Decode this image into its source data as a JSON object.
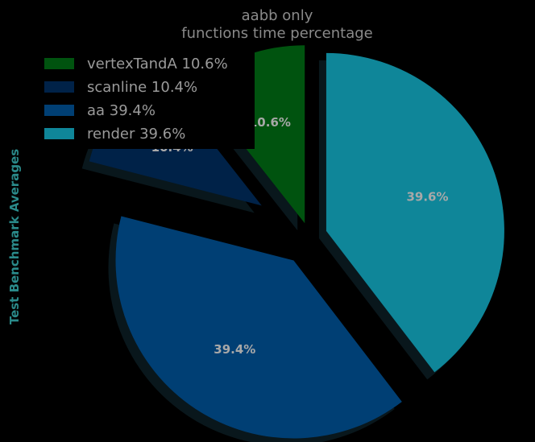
{
  "chart_data": {
    "type": "pie",
    "title": "aabb only\nfunctions time percentage",
    "title_lines": [
      "aabb only",
      "functions time percentage"
    ],
    "ylabel": "Test Benchmark Averages",
    "slices": [
      {
        "label": "vertexTandA",
        "value": 10.6,
        "percent_label": "10.6%",
        "legend": "vertexTandA 10.6%",
        "color": "#00530f"
      },
      {
        "label": "scanline",
        "value": 10.4,
        "percent_label": "10.4%",
        "legend": "scanline 10.4%",
        "color": "#002248"
      },
      {
        "label": "aa",
        "value": 39.4,
        "percent_label": "39.4%",
        "legend": "aa 39.4%",
        "color": "#003f74"
      },
      {
        "label": "render",
        "value": 39.6,
        "percent_label": "39.6%",
        "legend": "render 39.6%",
        "color": "#0f8699"
      }
    ],
    "start_angle_deg": 90,
    "direction": "counterclockwise",
    "explode": true,
    "shadow": true,
    "legend_position": "top-left",
    "background": "#000000"
  }
}
